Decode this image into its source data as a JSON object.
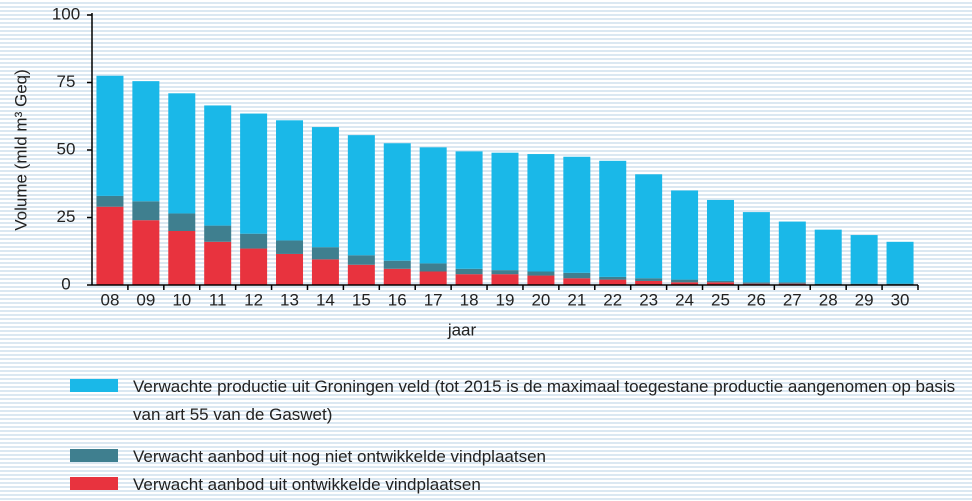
{
  "chart_data": {
    "type": "stacked_bar",
    "y_label": "Volume (mld m³ Geq)",
    "x_label": "jaar",
    "categories": [
      "08",
      "09",
      "10",
      "11",
      "12",
      "13",
      "14",
      "15",
      "16",
      "17",
      "18",
      "19",
      "20",
      "21",
      "22",
      "23",
      "24",
      "25",
      "26",
      "27",
      "28",
      "29",
      "30"
    ],
    "series": [
      {
        "name": "Verwachte productie uit Groningen veld (tot 2015 is de maximaal toegestane productie aangenomen op basis van art 55 van de Gaswet)",
        "color": "#1ab8e8",
        "values": [
          44.5,
          44.5,
          44.5,
          44.5,
          44.5,
          44.5,
          44.5,
          44.5,
          43.5,
          43,
          43.5,
          43.5,
          43.5,
          43,
          43,
          38.5,
          33,
          30,
          26,
          22.5,
          20,
          18,
          15.5
        ]
      },
      {
        "name": "Verwacht aanbod uit nog niet ontwikkelde vindplaatsen",
        "color": "#3f7f8f",
        "values": [
          4,
          7,
          6.5,
          6,
          5.5,
          5,
          4.5,
          3.5,
          3,
          3,
          2,
          1.5,
          1.5,
          2,
          1,
          1,
          1,
          0.5,
          0.5,
          0.5,
          0.5,
          0.5,
          0.5
        ]
      },
      {
        "name": "Verwacht aanbod uit ontwikkelde vindplaatsen",
        "color": "#e8333e",
        "values": [
          29,
          24,
          20,
          16,
          13.5,
          11.5,
          9.5,
          7.5,
          6,
          5,
          4,
          4,
          3.5,
          2.5,
          2,
          1.5,
          1,
          1,
          0.5,
          0.5,
          0,
          0,
          0
        ]
      }
    ],
    "ylim": [
      0,
      100
    ],
    "yticks": [
      0,
      25,
      50,
      75,
      100
    ]
  }
}
